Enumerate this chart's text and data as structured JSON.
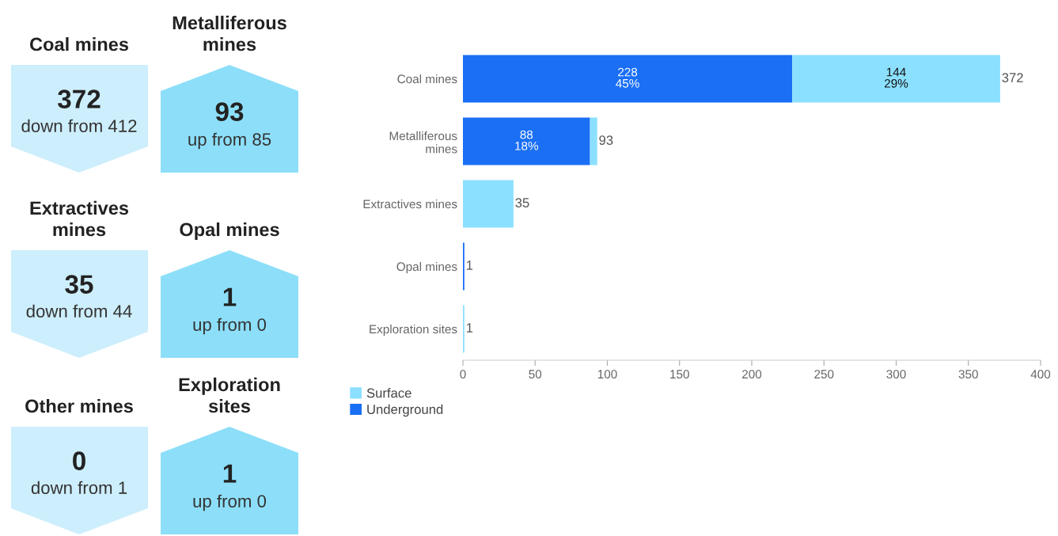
{
  "chart_data": [
    {
      "type": "other",
      "annotations": [
        "Coal mines",
        "372",
        "down from 412",
        "Metalliferous\nmines",
        "93",
        "up from 85",
        "Extractives\nmines",
        "35",
        "down from 44",
        "Opal mines",
        "1",
        "up from 0",
        "Other mines",
        "0",
        "down from 1",
        "Exploration\nsites",
        "1",
        "up from 0"
      ]
    },
    {
      "type": "bar",
      "orientation": "horizontal",
      "stacked": true,
      "categories": [
        "Coal mines",
        "Metalliferous\nmines",
        "Extractives mines",
        "Opal mines",
        "Exploration sites"
      ],
      "series": [
        {
          "name": "Underground",
          "color": "#1a6ff5",
          "values": [
            228,
            88,
            0,
            1,
            0
          ],
          "value_labels": [
            "228\n45%",
            "88\n18%",
            null,
            null,
            null
          ]
        },
        {
          "name": "Surface",
          "color": "#8ce0ff",
          "values": [
            144,
            5,
            35,
            0,
            1
          ],
          "value_labels": [
            "144\n29%",
            null,
            null,
            null,
            null
          ]
        }
      ],
      "totals": [
        "372",
        "93",
        "35",
        "1",
        "1"
      ],
      "xlim": [
        0,
        400
      ],
      "xticks": [
        0,
        50,
        100,
        150,
        200,
        250,
        300,
        350,
        400
      ],
      "grid": false,
      "legend": "bottom left"
    }
  ]
}
